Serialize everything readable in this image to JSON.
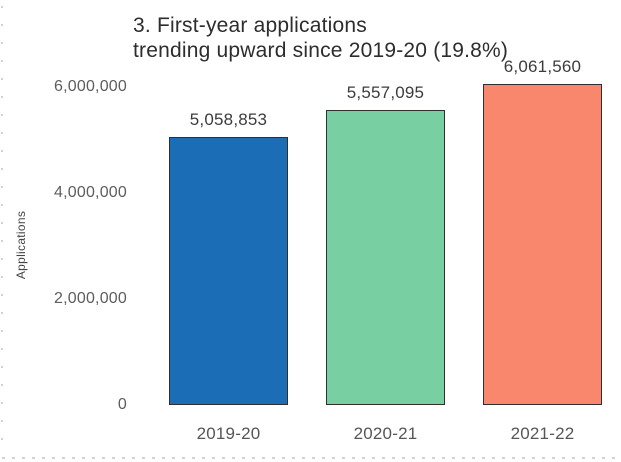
{
  "page": {
    "background_color": "#ffffff",
    "edge_dot_color": "#d4d4d4"
  },
  "chart_data": {
    "type": "bar",
    "title_lines": [
      "3. First-year applications",
      "trending upward since 2019-20 (19.8%)"
    ],
    "title": "3. First-year applications trending upward since 2019-20 (19.8%)",
    "categories": [
      "2019-20",
      "2020-21",
      "2021-22"
    ],
    "values": [
      5058853,
      5557095,
      6061560
    ],
    "value_labels": [
      "5,058,853",
      "5,557,095",
      "6,061,560"
    ],
    "series": [
      {
        "name": "Applications",
        "values": [
          5058853,
          5557095,
          6061560
        ]
      }
    ],
    "bar_colors": [
      "#1b6eb5",
      "#78cfa2",
      "#f8876d"
    ],
    "bar_border_color": "#2f2f2f",
    "xlabel": "",
    "ylabel": "Applications",
    "ylim": [
      0,
      6200000
    ],
    "yticks": [
      {
        "value": 0,
        "label": "0"
      },
      {
        "value": 2000000,
        "label": "2,000,000"
      },
      {
        "value": 4000000,
        "label": "4,000,000"
      },
      {
        "value": 6000000,
        "label": "6,000,000"
      }
    ],
    "grid": false,
    "legend_position": "none"
  }
}
